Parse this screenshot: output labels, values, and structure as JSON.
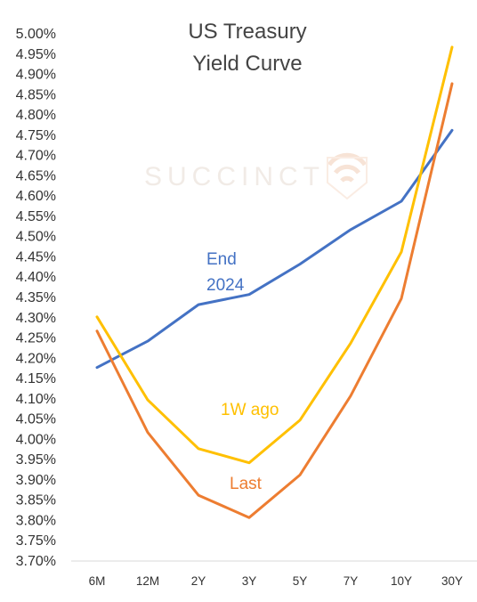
{
  "chart_data": {
    "type": "line",
    "title_lines": [
      "US Treasury",
      "Yield Curve"
    ],
    "watermark": "SUCCINCT",
    "categories": [
      "6M",
      "12M",
      "2Y",
      "3Y",
      "5Y",
      "7Y",
      "10Y",
      "30Y"
    ],
    "ylim": [
      3.7,
      5.0
    ],
    "ystep": 0.05,
    "y_tick_labels": [
      "5.00%",
      "4.95%",
      "4.90%",
      "4.85%",
      "4.80%",
      "4.75%",
      "4.70%",
      "4.65%",
      "4.60%",
      "4.55%",
      "4.50%",
      "4.45%",
      "4.40%",
      "4.35%",
      "4.30%",
      "4.25%",
      "4.20%",
      "4.15%",
      "4.10%",
      "4.05%",
      "4.00%",
      "3.95%",
      "3.90%",
      "3.85%",
      "3.80%",
      "3.75%",
      "3.70%"
    ],
    "series": [
      {
        "name": "End 2024",
        "label_lines": [
          "End",
          "2024"
        ],
        "color": "#4472C4",
        "values": [
          4.175,
          4.24,
          4.33,
          4.355,
          4.43,
          4.515,
          4.585,
          4.76
        ]
      },
      {
        "name": "1W ago",
        "label_lines": [
          "1W ago"
        ],
        "color": "#FFC000",
        "values": [
          4.3,
          4.095,
          3.975,
          3.94,
          4.045,
          4.235,
          4.46,
          4.965
        ]
      },
      {
        "name": "Last",
        "label_lines": [
          "Last"
        ],
        "color": "#ED7D31",
        "values": [
          4.265,
          4.015,
          3.86,
          3.805,
          3.91,
          4.105,
          4.345,
          4.875
        ]
      }
    ],
    "grid": false,
    "legend": "inline labels"
  }
}
